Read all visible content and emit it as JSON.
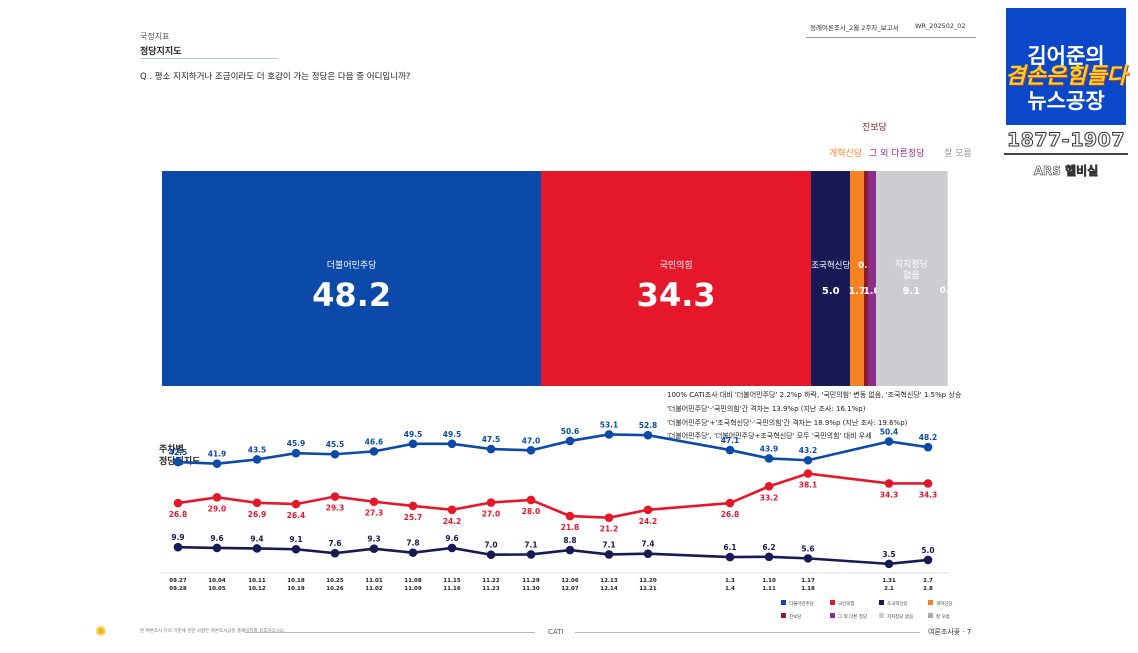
{
  "header": {
    "category": "국정지표",
    "title": "정당지지도",
    "question": "Q . 평소 지지하거나 조금이라도 더 호감이 가는 정당은 다음 중 어디입니까?",
    "report_name": "정례여론조사_2월 2주차_보고서",
    "report_code": "WR_202502_02"
  },
  "badge": {
    "line1": "김어준의",
    "line2": "겸손은힘들다",
    "line3": "뉴스공장",
    "phone": "1877-1907",
    "ars": "ARS 헬비실"
  },
  "colors": {
    "democratic": "#0b4aa8",
    "ppp": "#e5172b",
    "rebuilding": "#181a56",
    "reform": "#f58220",
    "progressive": "#8b1c26",
    "others": "#8e2c8e",
    "none": "#cbcdd0",
    "dontknow": "#a8a8a8"
  },
  "chart_data": [
    {
      "type": "bar",
      "subtype": "stacked-100",
      "segments": [
        {
          "name": "더불어민주당",
          "value": 48.2,
          "value_label": "48.2",
          "color": "#0b4aa8"
        },
        {
          "name": "국민의힘",
          "value": 34.3,
          "value_label": "34.3",
          "color": "#e5172b"
        },
        {
          "name": "조국혁신당",
          "value": 5.0,
          "value_label": "5.0",
          "color": "#181a56"
        },
        {
          "name": "개혁신당",
          "value": 1.7,
          "value_label": "1.7",
          "color": "#f58220"
        },
        {
          "name": "진보당",
          "value": 0.5,
          "value_label": "0.5",
          "color": "#8b1c26"
        },
        {
          "name": "그 외 다른정당",
          "value": 1.0,
          "value_label": "1.0",
          "color": "#8e2c8e"
        },
        {
          "name": "지지정당 없음",
          "value": 9.1,
          "value_label": "9.1",
          "color": "#cbcdd0"
        },
        {
          "name": "잘 모름",
          "value": 0.1,
          "value_label": "0.1",
          "color": "#dedede"
        }
      ],
      "labels_above": {
        "progressive": "진보당",
        "reform": "개혁신당",
        "others": "그 외 다른정당",
        "dontknow": "잘 모름"
      },
      "inner_labels": {
        "democratic": "더불어민주당",
        "ppp": "국민의힘",
        "rebuilding": "조국혁신당",
        "none_line1": "지지정당",
        "none_line2": "없음"
      }
    },
    {
      "type": "line",
      "title_line1": "주차별",
      "title_line2": "정당지지도",
      "categories": [
        [
          "09.27",
          "09.28"
        ],
        [
          "10.04",
          "10.05"
        ],
        [
          "10.11",
          "10.12"
        ],
        [
          "10.18",
          "10.19"
        ],
        [
          "10.25",
          "10.26"
        ],
        [
          "11.01",
          "11.02"
        ],
        [
          "11.08",
          "11.09"
        ],
        [
          "11.15",
          "11.16"
        ],
        [
          "11.22",
          "11.23"
        ],
        [
          "11.29",
          "11.30"
        ],
        [
          "12.06",
          "12.07"
        ],
        [
          "12.13",
          "12.14"
        ],
        [
          "12.20",
          "12.21"
        ],
        [
          "1.3",
          "1.4"
        ],
        [
          "1.10",
          "1.11"
        ],
        [
          "1.17",
          "1.18"
        ],
        [
          "1.31",
          "2.1"
        ],
        [
          "2.7",
          "2.8"
        ]
      ],
      "series": [
        {
          "name": "더불어민주당",
          "color": "#0b4aa8",
          "values": [
            42.5,
            41.9,
            43.5,
            45.9,
            45.5,
            46.6,
            49.5,
            49.5,
            47.5,
            47.0,
            50.6,
            53.1,
            52.8,
            47.1,
            43.9,
            43.2,
            50.4,
            48.2
          ],
          "labels": [
            "42.5",
            "41.9",
            "43.5",
            "45.9",
            "45.5",
            "46.6",
            "49.5",
            "49.5",
            "47.5",
            "47.0",
            "50.6",
            "53.1",
            "52.8",
            "47.1",
            "43.9",
            "43.2",
            "50.4",
            "48.2"
          ]
        },
        {
          "name": "국민의힘",
          "color": "#e5172b",
          "values": [
            26.8,
            29.0,
            26.9,
            26.4,
            29.3,
            27.3,
            25.7,
            24.2,
            27.0,
            28.0,
            21.8,
            21.2,
            24.2,
            26.8,
            33.2,
            38.1,
            34.3,
            34.3
          ],
          "labels": [
            "26.8",
            "29.0",
            "26.9",
            "26.4",
            "29.3",
            "27.3",
            "25.7",
            "24.2",
            "27.0",
            "28.0",
            "21.8",
            "21.2",
            "24.2",
            "26.8",
            "33.2",
            "38.1",
            "34.3",
            "34.3"
          ]
        },
        {
          "name": "조국혁신당",
          "color": "#181a56",
          "values": [
            9.9,
            9.6,
            9.4,
            9.1,
            7.6,
            9.3,
            7.8,
            9.6,
            7.0,
            7.1,
            8.8,
            7.1,
            7.4,
            6.1,
            6.2,
            5.6,
            3.5,
            5.0
          ],
          "labels": [
            "9.9",
            "9.6",
            "9.4",
            "9.1",
            "7.6",
            "9.3",
            "7.8",
            "9.6",
            "7.0",
            "7.1",
            "8.8",
            "7.1",
            "7.4",
            "6.1",
            "6.2",
            "5.6",
            "3.5",
            "5.0"
          ]
        }
      ],
      "legend": [
        {
          "name": "더불어민주당",
          "color": "#0b4aa8"
        },
        {
          "name": "국민의힘",
          "color": "#e5172b"
        },
        {
          "name": "조국혁신당",
          "color": "#181a56"
        },
        {
          "name": "개혁신당",
          "color": "#f58220"
        },
        {
          "name": "진보당",
          "color": "#8b1c26"
        },
        {
          "name": "그 외 다른 정당",
          "color": "#8e2c8e"
        },
        {
          "name": "지지정당 없음",
          "color": "#cbcdd0"
        },
        {
          "name": "잘 모름",
          "color": "#a8a8a8"
        }
      ],
      "legend_placement": "bottom-right"
    }
  ],
  "notes": [
    "100% CATI조사 대비 '더불어민주당' 2.2%p 하락, '국민의힘' 변동 없음, '조국혁신당' 1.5%p 상승",
    "'더불어민주당'-'국민의힘'간 격차는 13.9%p (지난 조사: 16.1%p)",
    "'더불어민주당'+'조국혁신당'-'국민의힘'간 격차는 18.9%p (지난 조사: 19.6%p)",
    "'더불어민주당', '더불어민주당+조국혁신당' 모두 '국민의힘' 대비 우세"
  ],
  "footer": {
    "left": "본 여론조사 유의 기준에 관한 사항은 여론조사공정 홈페이지를 참조하십시오.",
    "center": "CATI",
    "right": "여론조사꽃 ·  7"
  }
}
